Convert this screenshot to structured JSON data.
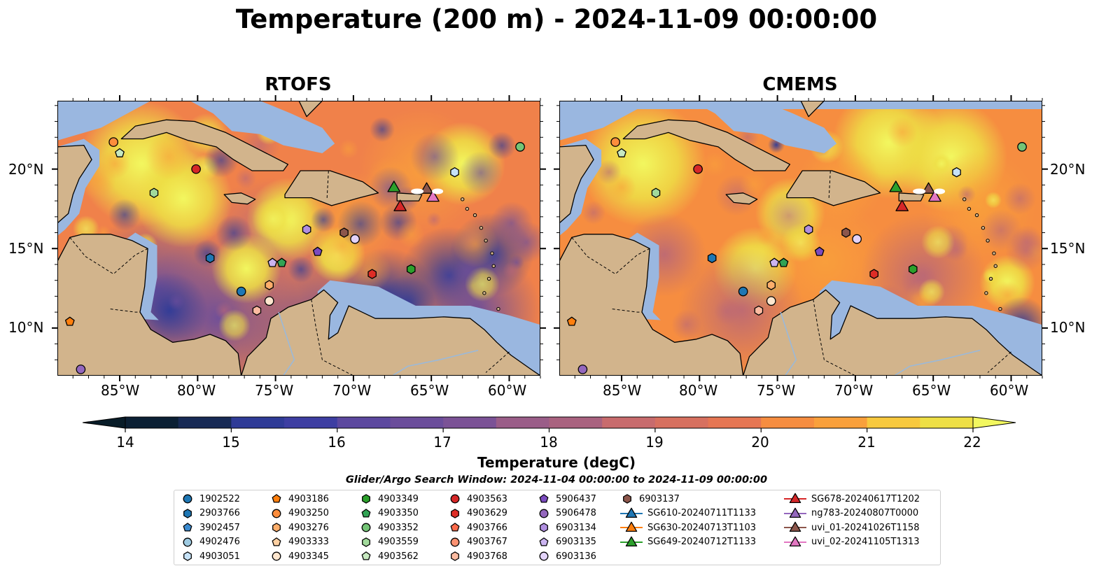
{
  "title": "Temperature (200 m) - 2024-11-09 00:00:00",
  "colors": {
    "colormap": [
      "#0b2034",
      "#172a55",
      "#223684",
      "#2f3b97",
      "#3d3ea2",
      "#4c43a2",
      "#5c489f",
      "#6b4d9b",
      "#7b5296",
      "#8a588f",
      "#9a5d88",
      "#a9627f",
      "#b96777",
      "#c86b6d",
      "#d7705f",
      "#e67653",
      "#f0814a",
      "#f68d40",
      "#f9a03b",
      "#fab53a",
      "#f8c93e",
      "#eedf45"
    ],
    "over": "#f2f75f",
    "under": "#081c28",
    "land": "#d2b48c",
    "shallow": "#9ab7e0"
  },
  "chart_data": [
    {
      "type": "heatmap",
      "panel": "RTOFS",
      "variable": "Temperature (degC)",
      "depth": "200 m",
      "xlim": [
        -89,
        -58
      ],
      "ylim": [
        7,
        24.3
      ],
      "x_ticks": [
        "85°W",
        "80°W",
        "75°W",
        "70°W",
        "65°W",
        "60°W"
      ],
      "y_ticks": [
        "10°N",
        "15°N",
        "20°N"
      ],
      "observations": [
        {
          "id": "1902522",
          "lon": -77.2,
          "lat": 12.3
        },
        {
          "id": "2903766",
          "lon": -79.2,
          "lat": 14.4
        },
        {
          "id": "4903051",
          "lon": -63.5,
          "lat": 19.8
        },
        {
          "id": "4903186",
          "lon": -88.2,
          "lat": 10.4
        },
        {
          "id": "4903250",
          "lon": -85.4,
          "lat": 21.7
        },
        {
          "id": "4903276",
          "lon": -75.4,
          "lat": 12.7
        },
        {
          "id": "4903345",
          "lon": -75.4,
          "lat": 11.7
        },
        {
          "id": "4903349",
          "lon": -66.3,
          "lat": 13.7
        },
        {
          "id": "4903350",
          "lon": -74.6,
          "lat": 14.1
        },
        {
          "id": "4903352",
          "lon": -59.3,
          "lat": 21.4
        },
        {
          "id": "4903559",
          "lon": -82.8,
          "lat": 18.5
        },
        {
          "id": "4903562",
          "lon": -85.0,
          "lat": 21.0
        },
        {
          "id": "4903563",
          "lon": -80.1,
          "lat": 20.0
        },
        {
          "id": "4903629",
          "lon": -68.8,
          "lat": 13.4
        },
        {
          "id": "4903768",
          "lon": -76.2,
          "lat": 11.1
        },
        {
          "id": "5906437",
          "lon": -72.3,
          "lat": 14.8
        },
        {
          "id": "5906478",
          "lon": -87.5,
          "lat": 7.4
        },
        {
          "id": "6903134",
          "lon": -73.0,
          "lat": 16.2
        },
        {
          "id": "6903135",
          "lon": -75.2,
          "lat": 14.1
        },
        {
          "id": "6903136",
          "lon": -69.9,
          "lat": 15.6
        },
        {
          "id": "6903137",
          "lon": -70.6,
          "lat": 16.0
        },
        {
          "id": "SG649-20240712T1133",
          "lon": -67.4,
          "lat": 18.8
        },
        {
          "id": "SG678-20240617T1202",
          "lon": -67.0,
          "lat": 17.6
        },
        {
          "id": "uvi_01-20241026T1158",
          "lon": -65.3,
          "lat": 18.7
        },
        {
          "id": "uvi_02-20241105T1313",
          "lon": -64.9,
          "lat": 18.2
        }
      ]
    },
    {
      "type": "heatmap",
      "panel": "CMEMS",
      "variable": "Temperature (degC)",
      "depth": "200 m",
      "xlim": [
        -89,
        -58
      ],
      "ylim": [
        7,
        24.3
      ],
      "x_ticks": [
        "85°W",
        "80°W",
        "75°W",
        "70°W",
        "65°W",
        "60°W"
      ],
      "y_ticks": [
        "10°N",
        "15°N",
        "20°N"
      ]
    }
  ],
  "colorbar": {
    "label": "Temperature (degC)",
    "vmin": 14,
    "vmax": 22,
    "step": 0.5,
    "extend": "both",
    "ticks": [
      "14",
      "15",
      "16",
      "17",
      "18",
      "19",
      "20",
      "21",
      "22"
    ]
  },
  "search_window": "Glider/Argo Search Window: 2024-11-04 00:00:00 to 2024-11-09 00:00:00",
  "legend": {
    "columns": [
      [
        {
          "label": "1902522",
          "marker": "circle",
          "color": "#1f77b4"
        },
        {
          "label": "2903766",
          "marker": "hexagon",
          "color": "#1f77b4"
        },
        {
          "label": "3902457",
          "marker": "pentagon",
          "color": "#3b8bd0"
        },
        {
          "label": "4902476",
          "marker": "circle",
          "color": "#9ecae1"
        },
        {
          "label": "4903051",
          "marker": "hexagon",
          "color": "#c6e2f7"
        }
      ],
      [
        {
          "label": "4903186",
          "marker": "pentagon",
          "color": "#ff7f0e"
        },
        {
          "label": "4903250",
          "marker": "circle",
          "color": "#fd8d3c"
        },
        {
          "label": "4903276",
          "marker": "hexagon",
          "color": "#fdae6b"
        },
        {
          "label": "4903333",
          "marker": "pentagon",
          "color": "#fdd0a2"
        },
        {
          "label": "4903345",
          "marker": "circle",
          "color": "#fee6ce"
        }
      ],
      [
        {
          "label": "4903349",
          "marker": "hexagon",
          "color": "#2ca02c"
        },
        {
          "label": "4903350",
          "marker": "pentagon",
          "color": "#31a354"
        },
        {
          "label": "4903352",
          "marker": "circle",
          "color": "#74c476"
        },
        {
          "label": "4903559",
          "marker": "hexagon",
          "color": "#a1d99b"
        },
        {
          "label": "4903562",
          "marker": "pentagon",
          "color": "#c7e9c0"
        }
      ],
      [
        {
          "label": "4903563",
          "marker": "circle",
          "color": "#d62728"
        },
        {
          "label": "4903629",
          "marker": "hexagon",
          "color": "#de2d26"
        },
        {
          "label": "4903766",
          "marker": "pentagon",
          "color": "#fb6a4a"
        },
        {
          "label": "4903767",
          "marker": "circle",
          "color": "#fc9272"
        },
        {
          "label": "4903768",
          "marker": "hexagon",
          "color": "#fcbba1"
        }
      ],
      [
        {
          "label": "5906437",
          "marker": "pentagon",
          "color": "#7b4bbf"
        },
        {
          "label": "5906478",
          "marker": "circle",
          "color": "#9467bd"
        },
        {
          "label": "6903134",
          "marker": "hexagon",
          "color": "#b08fe0"
        },
        {
          "label": "6903135",
          "marker": "pentagon",
          "color": "#cbb4f0"
        },
        {
          "label": "6903136",
          "marker": "circle",
          "color": "#e3d3fa"
        }
      ],
      [
        {
          "label": "6903137",
          "marker": "hexagon",
          "color": "#8c564b"
        },
        {
          "label": "SG610-20240711T1133",
          "marker": "triangle",
          "color": "#1f77b4"
        },
        {
          "label": "SG630-20240713T1103",
          "marker": "triangle",
          "color": "#ff7f0e"
        },
        {
          "label": "SG649-20240712T1133",
          "marker": "triangle",
          "color": "#2ca02c"
        }
      ],
      [
        {
          "label": "SG678-20240617T1202",
          "marker": "triangle",
          "color": "#d62728"
        },
        {
          "label": "ng783-20240807T0000",
          "marker": "triangle",
          "color": "#9467bd"
        },
        {
          "label": "uvi_01-20241026T1158",
          "marker": "triangle",
          "color": "#8c564b"
        },
        {
          "label": "uvi_02-20241105T1313",
          "marker": "triangle",
          "color": "#e377c2"
        }
      ]
    ]
  }
}
